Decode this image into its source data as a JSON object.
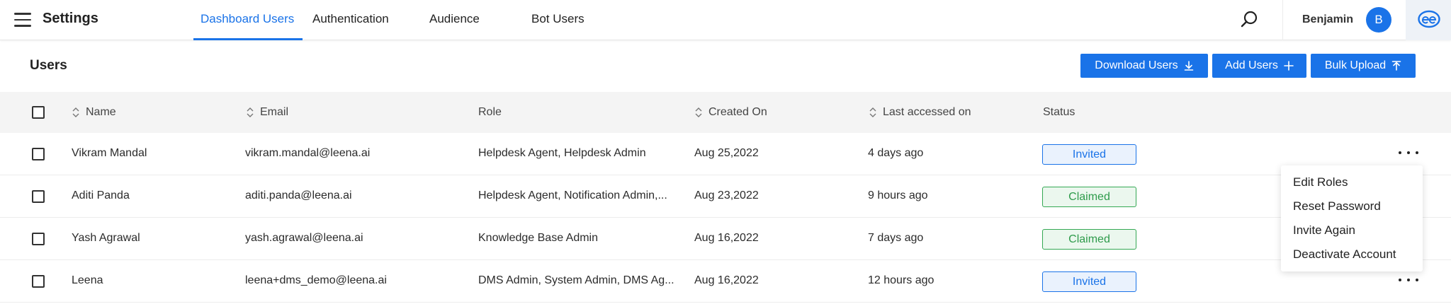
{
  "app": {
    "title": "Settings"
  },
  "tabs": [
    {
      "label": "Dashboard Users",
      "active": true
    },
    {
      "label": "Authentication",
      "active": false
    },
    {
      "label": "Audience",
      "active": false
    },
    {
      "label": "Bot Users",
      "active": false
    }
  ],
  "user": {
    "name": "Benjamin",
    "initial": "B"
  },
  "colors": {
    "accent": "#1a73e8",
    "invited": "#1a73e8",
    "claimed": "#34a853"
  },
  "page": {
    "title": "Users"
  },
  "actions": {
    "download": "Download Users",
    "add": "Add Users",
    "bulk_upload": "Bulk Upload"
  },
  "table": {
    "columns": {
      "name": "Name",
      "email": "Email",
      "role": "Role",
      "created_on": "Created On",
      "last_accessed": "Last accessed on",
      "status": "Status"
    },
    "rows": [
      {
        "name": "Vikram Mandal",
        "email": "vikram.mandal@leena.ai",
        "role": "Helpdesk Agent, Helpdesk Admin",
        "created_on": "Aug 25,2022",
        "last_accessed": "4 days ago",
        "status": "Invited"
      },
      {
        "name": "Aditi Panda",
        "email": "aditi.panda@leena.ai",
        "role": "Helpdesk Agent, Notification Admin,...",
        "created_on": "Aug 23,2022",
        "last_accessed": "9 hours ago",
        "status": "Claimed"
      },
      {
        "name": "Yash Agrawal",
        "email": "yash.agrawal@leena.ai",
        "role": "Knowledge Base Admin",
        "created_on": "Aug 16,2022",
        "last_accessed": "7 days ago",
        "status": "Claimed"
      },
      {
        "name": "Leena",
        "email": "leena+dms_demo@leena.ai",
        "role": "DMS Admin, System Admin, DMS Ag...",
        "created_on": "Aug 16,2022",
        "last_accessed": "12 hours ago",
        "status": "Invited"
      }
    ]
  },
  "row_menu": {
    "items": [
      "Edit Roles",
      "Reset Password",
      "Invite Again",
      "Deactivate Account"
    ]
  },
  "icons": [
    "menu-icon",
    "search-icon",
    "download-icon",
    "plus-icon",
    "upload-icon",
    "sort-icon",
    "more-icon",
    "brand-logo"
  ]
}
